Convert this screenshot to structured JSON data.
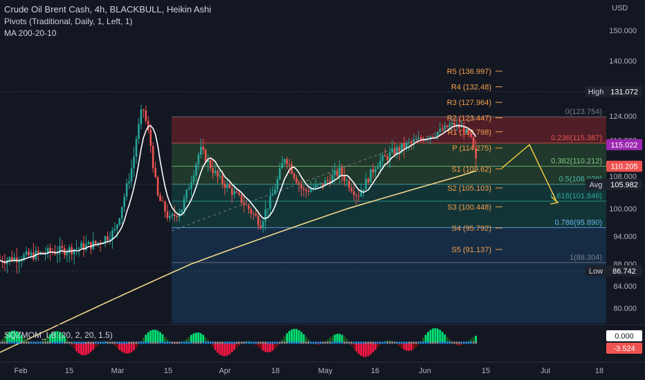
{
  "header": {
    "title": "Crude Oil Brent Cash, 4h, BLACKBULL, Heikin Ashi",
    "indicator_1": "Pivots (Traditional, Daily, 1, Left, 1)",
    "indicator_2": "MA 200-20-10",
    "currency": "USD"
  },
  "subchart": {
    "label": "SQZMOM_LB (20, 2, 20, 1.5)"
  },
  "colors": {
    "background": "#131722",
    "up": "#26a69a",
    "down": "#ef5350",
    "ma_long": "#f5d98b",
    "ma_short": "#ffffff",
    "pivot": "#f7a14d",
    "fib_red": "#5b2028",
    "fib_green": "#23402e",
    "fib_teal": "#143a3a",
    "fib_blue": "#17304a",
    "projection": "#f5c842"
  },
  "chart_data": {
    "type": "candlestick",
    "y_axis": {
      "ticks": [
        "150.000",
        "140.000",
        "124.000",
        "116.000",
        "108.000",
        "100.000",
        "94.000",
        "88.000",
        "84.000",
        "80.000"
      ],
      "ylim": [
        76,
        155
      ]
    },
    "x_axis": {
      "ticks": [
        "Feb",
        "15",
        "Mar",
        "15",
        "Apr",
        "18",
        "May",
        "16",
        "Jun",
        "15",
        "Jul",
        "18"
      ]
    },
    "pivots": [
      {
        "label": "R5 (136.997)",
        "value": 136.997
      },
      {
        "label": "R4 (132.48)",
        "value": 132.48
      },
      {
        "label": "R3 (127.964)",
        "value": 127.964
      },
      {
        "label": "R2 (123.447)",
        "value": 123.447
      },
      {
        "label": "R1 (118.798)",
        "value": 118.798
      },
      {
        "label": "P (114.275)",
        "value": 114.275
      },
      {
        "label": "S1 (109.62)",
        "value": 109.62
      },
      {
        "label": "S2 (105.103)",
        "value": 105.103
      },
      {
        "label": "S3 (100.448)",
        "value": 100.448
      },
      {
        "label": "S4 (95.792)",
        "value": 95.792
      },
      {
        "label": "S5 (91.137)",
        "value": 91.137
      }
    ],
    "fibonacci": [
      {
        "label": "0(123.754)",
        "value": 123.754
      },
      {
        "label": "0.236(115.387)",
        "value": 115.387
      },
      {
        "label": "0.382(110.212)",
        "value": 110.212
      },
      {
        "label": "0.5(106.029)",
        "value": 106.029
      },
      {
        "label": "0.618(101.846)",
        "value": 101.846
      },
      {
        "label": "0.786(95.890)",
        "value": 95.89
      },
      {
        "label": "1(88.304)",
        "value": 88.304
      }
    ],
    "price_labels": [
      {
        "tag": "High",
        "value": "131.072",
        "price": 131.072,
        "color": "#1e222d"
      },
      {
        "tag": "",
        "value": "115.022",
        "price": 115.022,
        "color": "#9c27b0"
      },
      {
        "tag": "",
        "value": "110.205",
        "price": 110.205,
        "color": "#ef5350"
      },
      {
        "tag": "Avg",
        "value": "105.982",
        "price": 105.982,
        "color": "#1e222d"
      },
      {
        "tag": "Low",
        "value": "86.742",
        "price": 86.742,
        "color": "#1e222d"
      }
    ],
    "momentum_labels": [
      {
        "value": "0.000",
        "color": "#ffffff",
        "text_color": "#131722"
      },
      {
        "value": "-3.524",
        "color": "#ef5350",
        "text_color": "#ffffff"
      }
    ],
    "price_path": [
      [
        0,
        88.8
      ],
      [
        0.04,
        89.6
      ],
      [
        0.08,
        90.5
      ],
      [
        0.12,
        91.2
      ],
      [
        0.16,
        92.5
      ],
      [
        0.19,
        95.2
      ],
      [
        0.2,
        100.2
      ],
      [
        0.22,
        111.5
      ],
      [
        0.235,
        127.2
      ],
      [
        0.245,
        118.5
      ],
      [
        0.26,
        103.0
      ],
      [
        0.28,
        97.5
      ],
      [
        0.3,
        100.2
      ],
      [
        0.33,
        114.0
      ],
      [
        0.36,
        107.5
      ],
      [
        0.395,
        102.5
      ],
      [
        0.43,
        96.8
      ],
      [
        0.45,
        103.5
      ],
      [
        0.47,
        112.6
      ],
      [
        0.5,
        104.2
      ],
      [
        0.53,
        105.8
      ],
      [
        0.56,
        109.1
      ],
      [
        0.59,
        103.2
      ],
      [
        0.62,
        110.6
      ],
      [
        0.65,
        113.4
      ],
      [
        0.68,
        115.6
      ],
      [
        0.7,
        116.8
      ],
      [
        0.72,
        118.5
      ],
      [
        0.745,
        121.2
      ],
      [
        0.76,
        120.2
      ],
      [
        0.775,
        117.5
      ],
      [
        0.785,
        111.2
      ]
    ]
  }
}
